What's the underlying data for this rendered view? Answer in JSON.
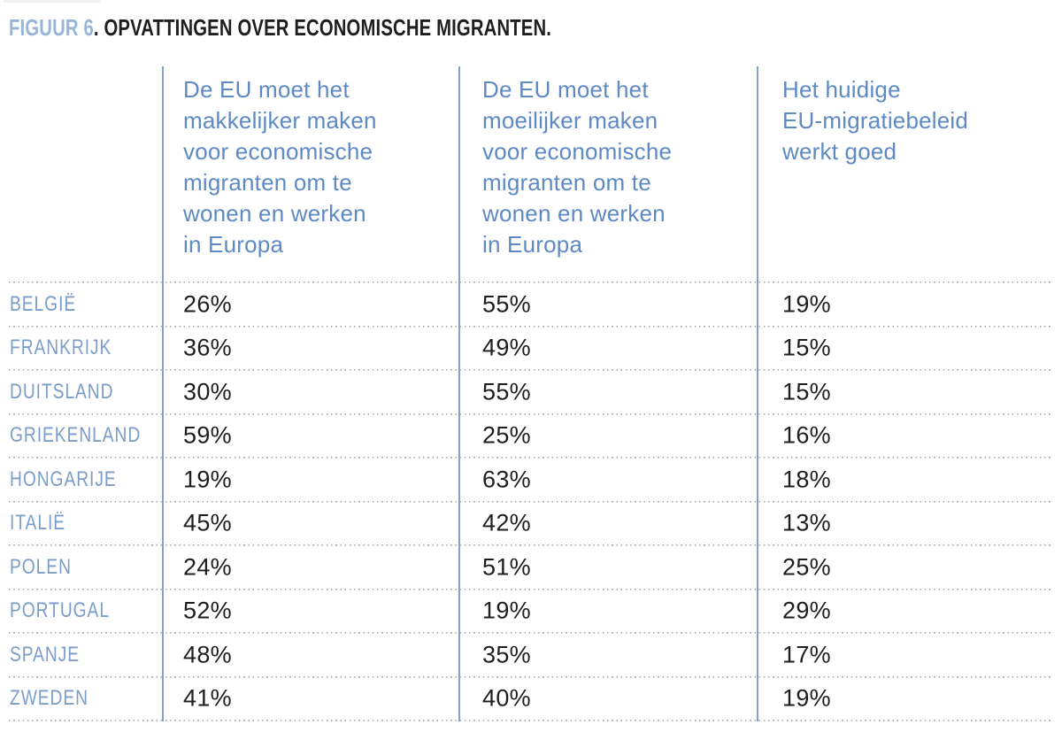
{
  "figure": {
    "label": "FIGUUR 6",
    "title": ". OPVATTINGEN OVER ECONOMISCHE MIGRANTEN."
  },
  "table": {
    "columns": [
      {
        "header": "De EU moet het\nmakkelijker maken\nvoor economische\nmigranten om te\nwonen en werken\nin Europa"
      },
      {
        "header": "De EU moet het\nmoeilijker maken\nvoor economische\nmigranten om te\nwonen en werken\nin Europa"
      },
      {
        "header": "Het huidige\nEU-migratiebeleid\nwerkt goed"
      }
    ],
    "rows": [
      {
        "country": "BELGIË",
        "easier": "26%",
        "harder": "55%",
        "current": "19%"
      },
      {
        "country": "FRANKRIJK",
        "easier": "36%",
        "harder": "49%",
        "current": "15%"
      },
      {
        "country": "DUITSLAND",
        "easier": "30%",
        "harder": "55%",
        "current": "15%"
      },
      {
        "country": "GRIEKENLAND",
        "easier": "59%",
        "harder": "25%",
        "current": "16%"
      },
      {
        "country": "HONGARIJE",
        "easier": "19%",
        "harder": "63%",
        "current": "18%"
      },
      {
        "country": "ITALIË",
        "easier": "45%",
        "harder": "42%",
        "current": "13%"
      },
      {
        "country": "POLEN",
        "easier": "24%",
        "harder": "51%",
        "current": "25%"
      },
      {
        "country": "PORTUGAL",
        "easier": "52%",
        "harder": "19%",
        "current": "29%"
      },
      {
        "country": "SPANJE",
        "easier": "48%",
        "harder": "35%",
        "current": "17%"
      },
      {
        "country": "ZWEDEN",
        "easier": "41%",
        "harder": "40%",
        "current": "19%"
      }
    ]
  },
  "colors": {
    "title-accent": "#96b5d9",
    "header-blue": "#5e8ac4",
    "label-blue": "#7a9dca",
    "line-blue": "#84a2cc",
    "dot-gray": "#9fabb6",
    "text-dark": "#1e1e1c"
  },
  "chart_data": {
    "type": "table",
    "title": "FIGUUR 6. OPVATTINGEN OVER ECONOMISCHE MIGRANTEN.",
    "categories": [
      "België",
      "Frankrijk",
      "Duitsland",
      "Griekenland",
      "Hongarije",
      "Italië",
      "Polen",
      "Portugal",
      "Spanje",
      "Zweden"
    ],
    "series": [
      {
        "name": "De EU moet het makkelijker maken voor economische migranten om te wonen en werken in Europa",
        "unit": "%",
        "values": [
          26,
          36,
          30,
          59,
          19,
          45,
          24,
          52,
          48,
          41
        ]
      },
      {
        "name": "De EU moet het moeilijker maken voor economische migranten om te wonen en werken in Europa",
        "unit": "%",
        "values": [
          55,
          49,
          55,
          25,
          63,
          42,
          51,
          19,
          35,
          40
        ]
      },
      {
        "name": "Het huidige EU-migratiebeleid werkt goed",
        "unit": "%",
        "values": [
          19,
          15,
          15,
          16,
          18,
          13,
          25,
          29,
          17,
          19
        ]
      }
    ],
    "layout": {
      "grid": "dotted horizontal separators",
      "column_dividers": "solid blue vertical lines",
      "legend_position": "none"
    }
  }
}
